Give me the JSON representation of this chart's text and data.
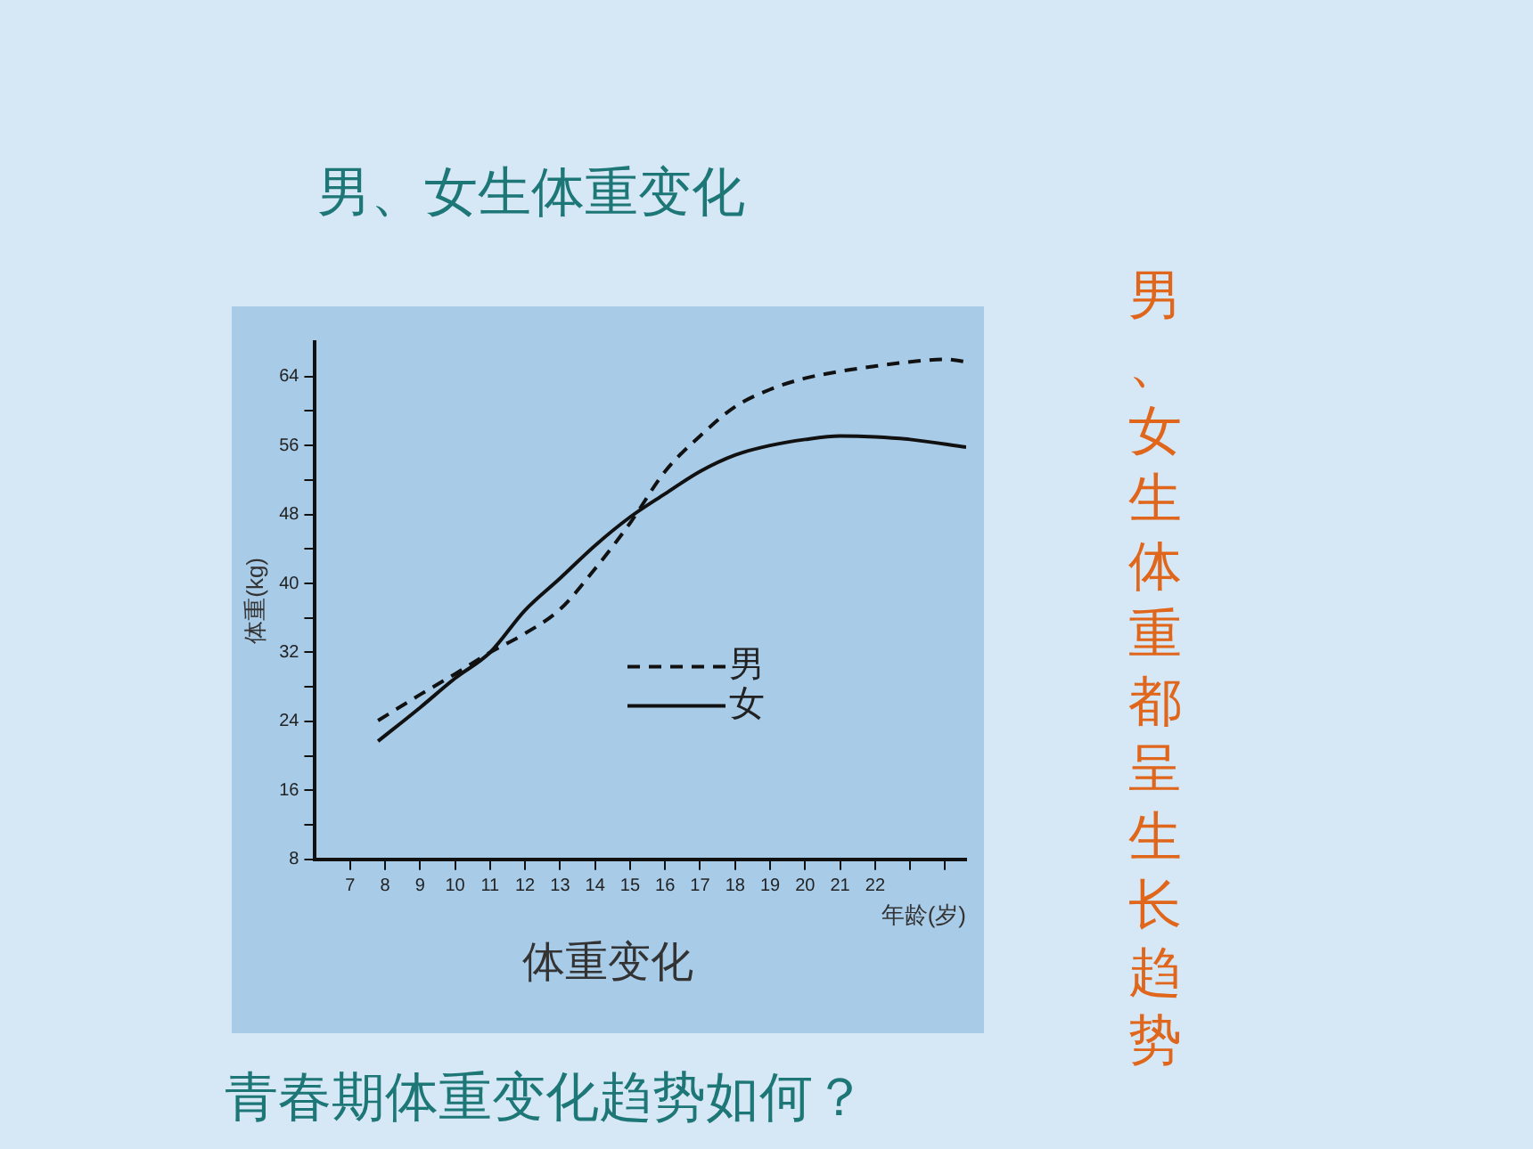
{
  "chart_data": {
    "type": "line",
    "title": "男、女生体重变化",
    "xlabel": "年龄(岁)",
    "ylabel": "体重(kg)",
    "annotations": [
      "体重变化",
      "男、女生体重都呈生长趋势",
      "青春期体重变化趋势如何？"
    ],
    "series": [
      {
        "name": "男",
        "color": "#111111",
        "line_style": "dashed",
        "x": [
          7.8,
          9,
          10,
          11,
          12,
          13,
          14,
          15,
          16,
          17,
          18,
          19,
          20,
          21,
          22,
          23,
          24,
          24.6
        ],
        "values": [
          24.1,
          27.1,
          29.5,
          32,
          34.2,
          37,
          41.7,
          47,
          53,
          57.1,
          60.5,
          62.5,
          63.8,
          64.6,
          65.2,
          65.7,
          66,
          65.7
        ]
      },
      {
        "name": "女",
        "color": "#111111",
        "line_style": "solid",
        "x": [
          7.8,
          9,
          10,
          11,
          12,
          13,
          14,
          15,
          16,
          17,
          18,
          19,
          20,
          21,
          22,
          23,
          24.6
        ],
        "values": [
          21.7,
          25.6,
          29,
          32,
          36.9,
          40.6,
          44.4,
          47.7,
          50.4,
          53,
          54.9,
          56,
          56.7,
          57.1,
          57,
          56.7,
          55.8
        ]
      }
    ],
    "xlim": [
      6,
      24.6
    ],
    "ylim": [
      8,
      68
    ],
    "xticks": [
      7,
      8,
      9,
      10,
      11,
      12,
      13,
      14,
      15,
      16,
      17,
      18,
      19,
      20,
      21,
      22,
      {
        "value": 23,
        "label": null
      },
      {
        "value": 24,
        "label": null
      }
    ],
    "yticks": [
      8,
      {
        "value": 12,
        "label": null
      },
      16,
      {
        "value": 20,
        "label": null
      },
      24,
      {
        "value": 28,
        "label": null
      },
      32,
      {
        "value": 36,
        "label": null
      },
      40,
      {
        "value": 44,
        "label": null
      },
      48,
      {
        "value": 52,
        "label": null
      },
      56,
      {
        "value": 60,
        "label": null
      },
      64
    ],
    "grid": false,
    "legend": "bottom right",
    "marker": "none"
  }
}
